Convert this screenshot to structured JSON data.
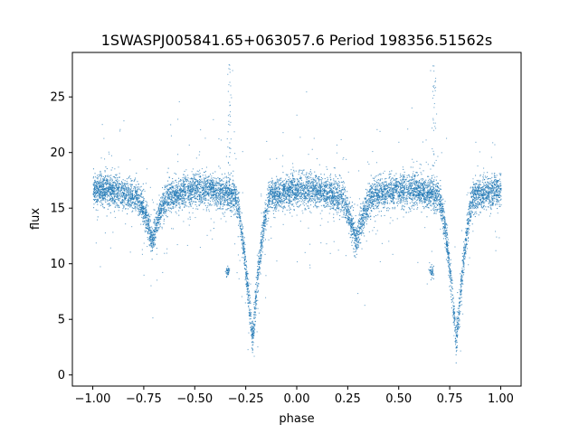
{
  "chart_data": {
    "type": "scatter",
    "title": "1SWASPJ005841.65+063057.6 Period 198356.51562s",
    "xlabel": "phase",
    "ylabel": "flux",
    "xlim": [
      -1.1,
      1.1
    ],
    "ylim": [
      -1.0,
      29.0
    ],
    "x_ticks": [
      -1.0,
      -0.75,
      -0.5,
      -0.25,
      0.0,
      0.25,
      0.5,
      0.75,
      1.0
    ],
    "x_tick_labels": [
      "−1.00",
      "−0.75",
      "−0.50",
      "−0.25",
      "0.00",
      "0.25",
      "0.50",
      "0.75",
      "1.00"
    ],
    "y_ticks": [
      0,
      5,
      10,
      15,
      20,
      25
    ],
    "y_tick_labels": [
      "0",
      "5",
      "10",
      "15",
      "20",
      "25"
    ],
    "grid": false,
    "legend": "none",
    "point_color": "#1f77b4",
    "series": [
      {
        "phase_range": [
          -1.0,
          1.0
        ],
        "baseline_flux": 16.3,
        "scatter_sd": 0.7,
        "primary_eclipse": {
          "phase": [
            -0.22,
            0.78
          ],
          "min_flux": 3.5,
          "half_width": 0.09
        },
        "secondary_eclipse": {
          "phase": [
            -0.71,
            0.29
          ],
          "min_flux": 12.5,
          "half_width": 0.08
        },
        "outlier_flux_range": [
          1.0,
          28.5
        ],
        "small_clump": {
          "phase": [
            -0.34,
            0.66
          ],
          "flux": 9.3
        }
      }
    ]
  }
}
